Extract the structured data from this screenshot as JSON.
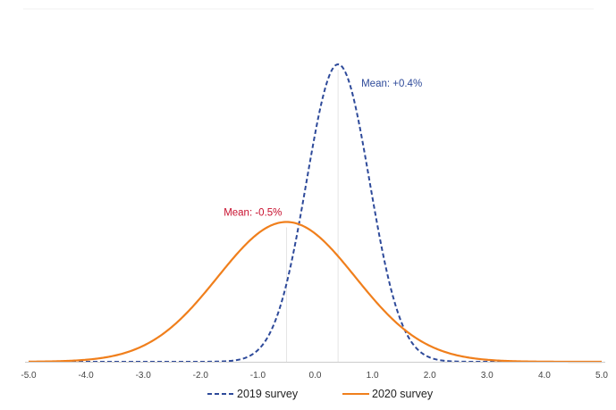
{
  "chart_data": {
    "type": "line",
    "title": "",
    "xlabel": "",
    "ylabel": "",
    "xlim": [
      -5.0,
      5.0
    ],
    "x_ticks": [
      "-5.0",
      "-4.0",
      "-3.0",
      "-2.0",
      "-1.0",
      "0.0",
      "1.0",
      "2.0",
      "3.0",
      "4.0",
      "5.0"
    ],
    "grid": false,
    "legend_position": "bottom-center",
    "series": [
      {
        "name": "2019 survey",
        "style": "dashed",
        "color": "#2e4a9a",
        "mean": 0.4,
        "std_dev": 0.55,
        "peak_relative": 1.0,
        "x": [
          -5.0,
          -2.0,
          -1.0,
          -0.5,
          0.0,
          0.4,
          0.8,
          1.2,
          1.8,
          2.5,
          3.0,
          5.0
        ],
        "y": [
          0.0,
          0.0,
          0.04,
          0.23,
          0.77,
          1.0,
          0.77,
          0.35,
          0.05,
          0.0,
          0.0,
          0.0
        ]
      },
      {
        "name": "2020 survey",
        "style": "solid",
        "color": "#f07f1c",
        "mean": -0.5,
        "std_dev": 1.2,
        "peak_relative": 0.47,
        "x": [
          -5.0,
          -4.0,
          -3.0,
          -2.0,
          -1.0,
          -0.5,
          0.0,
          1.0,
          2.0,
          3.0,
          4.0,
          5.0
        ],
        "y": [
          0.0,
          0.03,
          0.05,
          0.17,
          0.43,
          0.47,
          0.43,
          0.22,
          0.08,
          0.03,
          0.01,
          0.0
        ]
      }
    ],
    "annotations": [
      {
        "text": "Mean: +0.4%",
        "series": "2019 survey",
        "color": "#2e4a9a"
      },
      {
        "text": "Mean: -0.5%",
        "series": "2020 survey",
        "color": "#c8102e"
      }
    ]
  },
  "colors": {
    "axis": "#cccccc",
    "mean_marker": "#e4e4e4",
    "frame_top": "#f0f0f0"
  }
}
